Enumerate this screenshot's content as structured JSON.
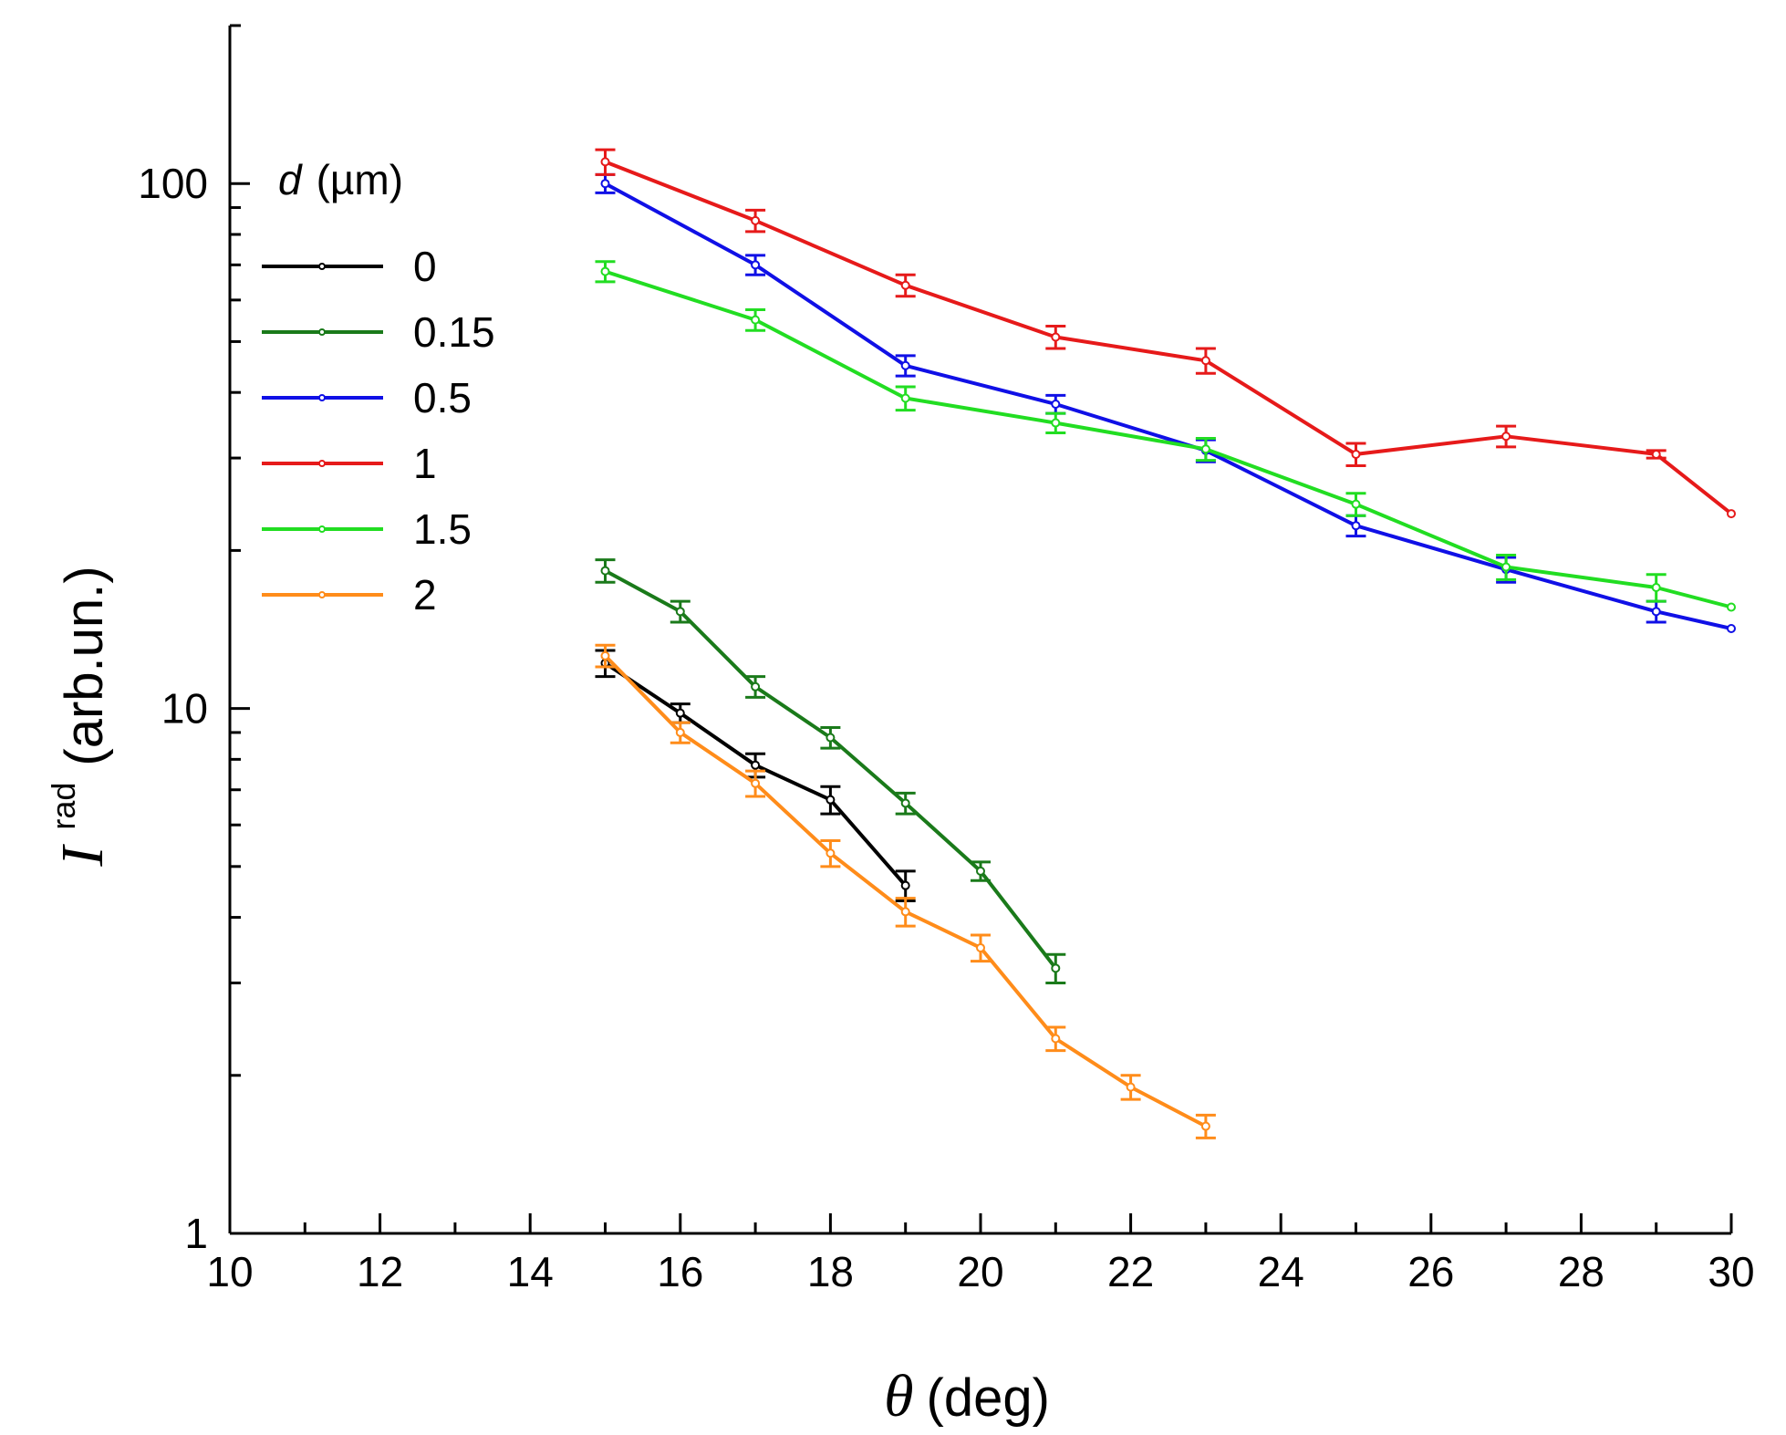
{
  "chart_data": {
    "type": "line",
    "yscale": "log",
    "xlim": [
      10,
      30
    ],
    "ylim": [
      1,
      200
    ],
    "x_ticks": [
      "10",
      "12",
      "14",
      "16",
      "18",
      "20",
      "22",
      "24",
      "26",
      "28",
      "30"
    ],
    "y_ticks": [
      "1",
      "10",
      "100"
    ],
    "xlabel": {
      "symbol": "θ",
      "text": "(deg)"
    },
    "ylabel": {
      "symbol": "I",
      "sup": "rad",
      "text": "(arb.un.)"
    },
    "legend": {
      "title_symbol": "d",
      "title_text": "(µm)",
      "placement": "top-left"
    },
    "series": [
      {
        "name": "0",
        "color": "#000000",
        "x": [
          15,
          16,
          17,
          18,
          19
        ],
        "y": [
          12.2,
          9.8,
          7.8,
          6.7,
          4.6
        ],
        "err": [
          0.7,
          0.4,
          0.4,
          0.4,
          0.3
        ]
      },
      {
        "name": "0.15",
        "color": "#1a7a1a",
        "x": [
          15,
          16,
          17,
          18,
          19,
          20,
          21
        ],
        "y": [
          18.3,
          15.3,
          11.0,
          8.8,
          6.6,
          4.9,
          3.2
        ],
        "err": [
          0.9,
          0.7,
          0.5,
          0.4,
          0.3,
          0.2,
          0.2
        ]
      },
      {
        "name": "0.5",
        "color": "#1010e6",
        "x": [
          15,
          17,
          19,
          21,
          23,
          25,
          27,
          29,
          30
        ],
        "y": [
          100,
          70,
          45,
          38,
          31,
          22.3,
          18.4,
          15.3,
          14.2
        ],
        "err": [
          4,
          3,
          2,
          1.5,
          1.5,
          1,
          1,
          0.7,
          0
        ]
      },
      {
        "name": "1",
        "color": "#e61a1a",
        "x": [
          15,
          17,
          19,
          21,
          23,
          25,
          27,
          29,
          30
        ],
        "y": [
          110,
          85,
          64,
          51,
          46,
          30.5,
          33,
          30.5,
          23.5
        ],
        "err": [
          6,
          4,
          3,
          2.5,
          2.5,
          1.5,
          1.5,
          0.5,
          0
        ]
      },
      {
        "name": "1.5",
        "color": "#22dd22",
        "x": [
          15,
          17,
          19,
          21,
          23,
          25,
          27,
          29,
          30
        ],
        "y": [
          68,
          55,
          39,
          35,
          31.2,
          24.5,
          18.6,
          17.0,
          15.6
        ],
        "err": [
          3,
          2.5,
          2,
          1.5,
          1.5,
          1.2,
          1,
          1,
          0
        ]
      },
      {
        "name": "2",
        "color": "#ff8c1a",
        "x": [
          15,
          16,
          17,
          18,
          19,
          20,
          21,
          22,
          23
        ],
        "y": [
          12.6,
          9.0,
          7.2,
          5.3,
          4.1,
          3.5,
          2.35,
          1.9,
          1.6
        ],
        "err": [
          0.6,
          0.4,
          0.4,
          0.3,
          0.25,
          0.2,
          0.12,
          0.1,
          0.08
        ]
      }
    ]
  }
}
